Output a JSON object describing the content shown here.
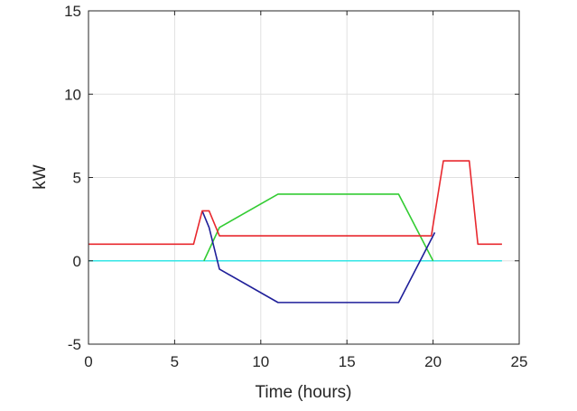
{
  "chart_data": {
    "type": "line",
    "title": "",
    "xlabel": "Time (hours)",
    "ylabel": "kW",
    "xlim": [
      0,
      25
    ],
    "ylim": [
      -5,
      15
    ],
    "xticks": [
      0,
      5,
      10,
      15,
      20,
      25
    ],
    "yticks": [
      -5,
      0,
      5,
      10,
      15
    ],
    "xtick_labels": [
      "0",
      "5",
      "10",
      "15",
      "20",
      "25"
    ],
    "ytick_labels": [
      "-5",
      "0",
      "5",
      "10",
      "15"
    ],
    "grid": true,
    "series": [
      {
        "color": "#e8282e",
        "x": [
          0,
          6.1,
          6.6,
          7.0,
          7.6,
          19.9,
          20.6,
          22.1,
          22.6,
          24
        ],
        "y": [
          1,
          1,
          3,
          3,
          1.5,
          1.5,
          6,
          6,
          1,
          1
        ]
      },
      {
        "color": "#33cc33",
        "x": [
          6.7,
          7.6,
          11,
          18,
          20
        ],
        "y": [
          0,
          2,
          4,
          4,
          0
        ]
      },
      {
        "color": "#1f1f99",
        "x": [
          6.6,
          7.0,
          7.6,
          11,
          18,
          20.1
        ],
        "y": [
          3,
          2,
          -0.5,
          -2.5,
          -2.5,
          1.7
        ]
      },
      {
        "color": "#33e6e6",
        "x": [
          0,
          24
        ],
        "y": [
          0,
          0
        ]
      }
    ]
  },
  "style": {
    "figure_background": "#ffffff",
    "axes_background": "#ffffff",
    "grid_color": "#e0e0e0",
    "axis_color": "#262626"
  }
}
